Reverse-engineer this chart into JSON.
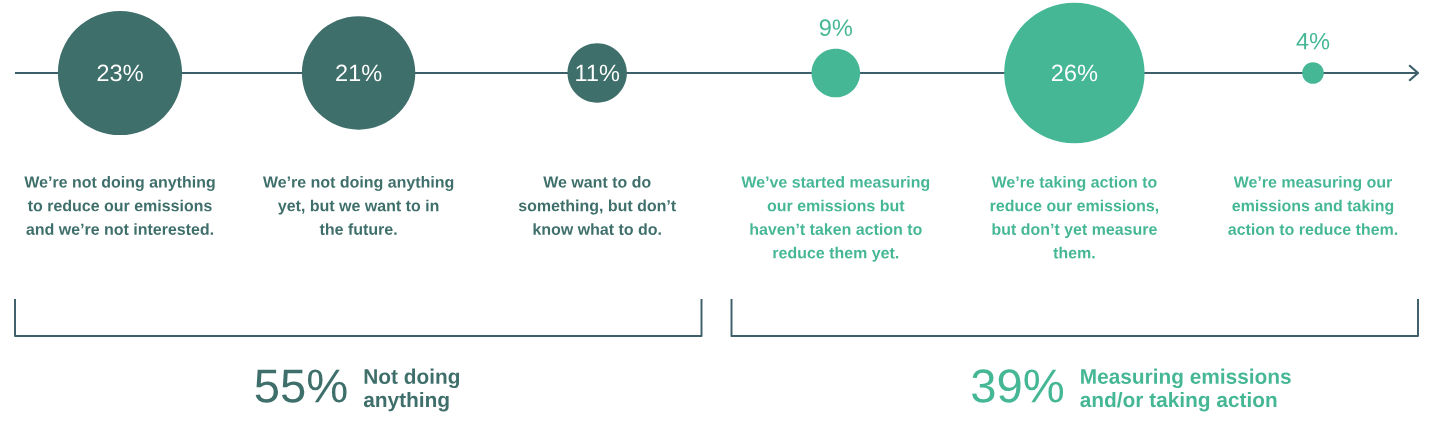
{
  "chart_data": {
    "type": "other",
    "categories": [
      "We’re not doing anything\nto reduce our emissions\nand we’re not interested.",
      "We’re not doing anything\nyet, but we want to in\nthe future.",
      "We want to do\nsomething, but don’t\nknow what to do.",
      "We’ve started measuring\nour emissions but\nhaven’t taken action to\nreduce them yet.",
      "We’re taking action to\nreduce our emissions,\nbut don’t yet measure\nthem.",
      "We’re measuring our\nemissions and taking\naction to reduce them."
    ],
    "values": [
      23,
      21,
      11,
      9,
      26,
      4
    ],
    "value_labels": [
      "23%",
      "21%",
      "11%",
      "9%",
      "26%",
      "4%"
    ],
    "colors": [
      "#3f6f6b",
      "#3f6f6b",
      "#3f6f6b",
      "#45b795",
      "#45b795",
      "#45b795"
    ],
    "annotations": [
      "55%",
      "Not doing\nanything",
      "39%",
      "Measuring emissions\nand/or taking action"
    ]
  }
}
